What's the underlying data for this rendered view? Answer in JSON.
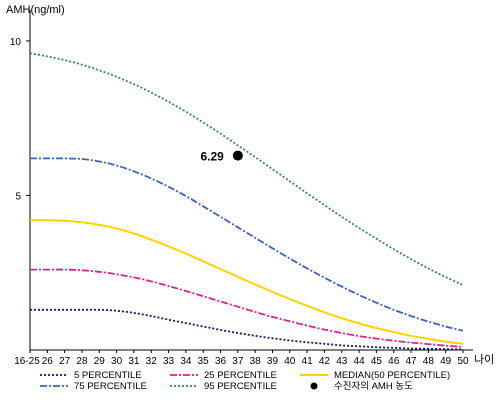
{
  "chart_data": {
    "type": "line",
    "ylabel": "AMH(ng/ml)",
    "xlabel": "나이",
    "ylim": [
      0,
      11
    ],
    "yticks": [
      5,
      10
    ],
    "x": [
      "16-25",
      "26",
      "27",
      "28",
      "29",
      "30",
      "31",
      "32",
      "33",
      "34",
      "35",
      "36",
      "37",
      "38",
      "39",
      "40",
      "41",
      "42",
      "43",
      "44",
      "45",
      "46",
      "47",
      "48",
      "49",
      "50"
    ],
    "series": [
      {
        "name": "5 PERCENTILE",
        "color": "#0a1a7a",
        "dash": "2,2",
        "values": [
          1.3,
          1.3,
          1.3,
          1.3,
          1.3,
          1.27,
          1.2,
          1.1,
          0.98,
          0.87,
          0.76,
          0.65,
          0.55,
          0.46,
          0.38,
          0.31,
          0.25,
          0.2,
          0.15,
          0.12,
          0.09,
          0.07,
          0.05,
          0.04,
          0.03,
          0.02
        ]
      },
      {
        "name": "25 PERCENTILE",
        "color": "#e0218a",
        "dash": "7,2,2,2",
        "values": [
          2.6,
          2.6,
          2.6,
          2.58,
          2.53,
          2.45,
          2.35,
          2.22,
          2.07,
          1.91,
          1.74,
          1.57,
          1.4,
          1.23,
          1.07,
          0.93,
          0.79,
          0.66,
          0.55,
          0.45,
          0.37,
          0.3,
          0.24,
          0.19,
          0.14,
          0.1
        ]
      },
      {
        "name": "MEDIAN(50 PERCENTILE)",
        "color": "#ffd200",
        "dash": "",
        "values": [
          4.2,
          4.2,
          4.18,
          4.13,
          4.05,
          3.93,
          3.77,
          3.57,
          3.35,
          3.12,
          2.87,
          2.62,
          2.37,
          2.12,
          1.88,
          1.65,
          1.43,
          1.22,
          1.03,
          0.86,
          0.71,
          0.58,
          0.46,
          0.36,
          0.27,
          0.2
        ]
      },
      {
        "name": "75 PERCENTILE",
        "color": "#3a5fcd",
        "dash": "7,2,2,2",
        "values": [
          6.2,
          6.2,
          6.2,
          6.18,
          6.1,
          5.97,
          5.78,
          5.55,
          5.28,
          4.98,
          4.65,
          4.31,
          3.97,
          3.63,
          3.29,
          2.96,
          2.64,
          2.34,
          2.05,
          1.78,
          1.53,
          1.3,
          1.1,
          0.92,
          0.76,
          0.62
        ]
      },
      {
        "name": "95 PERCENTILE",
        "color": "#2e8b57",
        "dash": "2,2",
        "values": [
          9.6,
          9.5,
          9.38,
          9.23,
          9.05,
          8.84,
          8.6,
          8.33,
          8.03,
          7.71,
          7.36,
          7.0,
          6.62,
          6.24,
          5.85,
          5.46,
          5.07,
          4.69,
          4.31,
          3.95,
          3.6,
          3.26,
          2.94,
          2.64,
          2.36,
          2.1
        ]
      }
    ],
    "point": {
      "name": "수진자의 AMH 농도",
      "x": "37",
      "y": 6.29,
      "label": "6.29",
      "color": "#000000"
    },
    "legend_position": "bottom",
    "grid": false
  }
}
